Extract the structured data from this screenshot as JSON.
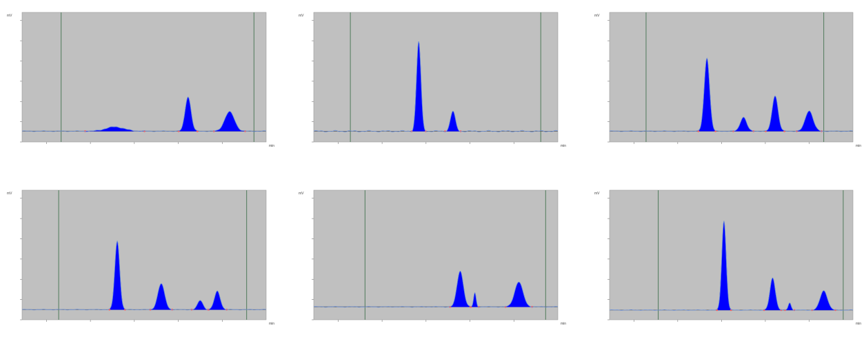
{
  "colors": {
    "plot_background": "#c0c0c0",
    "peak_fill": "#0000ff",
    "baseline": "#6a8fd8",
    "marker_line": "#4f7a5a",
    "integration_mark": "#ff5a5a"
  },
  "chart_data": [
    {
      "type": "line",
      "header": "",
      "ylabel": "mV",
      "xlabel": "min",
      "xlim": [
        0,
        100
      ],
      "ylim": [
        0,
        600
      ],
      "xticks": [
        "",
        "",
        "",
        "",
        ""
      ],
      "yticks": [],
      "baseline_level": 50,
      "markers_x": [
        16,
        95
      ],
      "peaks": [
        {
          "label": "",
          "x": 38,
          "height": 20,
          "width": 3.8
        },
        {
          "label": "",
          "x": 68,
          "height": 160,
          "width": 1.2
        },
        {
          "label": "",
          "x": 85,
          "height": 90,
          "width": 2.0
        }
      ]
    },
    {
      "type": "line",
      "header": "",
      "ylabel": "mV",
      "xlabel": "min",
      "xlim": [
        0,
        100
      ],
      "ylim": [
        0,
        325
      ],
      "xticks": [
        "",
        "",
        "",
        "",
        ""
      ],
      "yticks": [],
      "baseline_level": 27,
      "markers_x": [
        15,
        93
      ],
      "peaks": [
        {
          "label": "",
          "x": 43,
          "height": 225,
          "width": 0.9
        },
        {
          "label": "",
          "x": 57,
          "height": 50,
          "width": 1.0
        }
      ]
    },
    {
      "type": "line",
      "header": "",
      "ylabel": "mV",
      "xlabel": "min",
      "xlim": [
        0,
        100
      ],
      "ylim": [
        0,
        600
      ],
      "xticks": [
        "",
        "",
        "",
        "",
        ""
      ],
      "yticks": [],
      "baseline_level": 50,
      "markers_x": [
        15,
        88
      ],
      "peaks": [
        {
          "label": "",
          "x": 40,
          "height": 340,
          "width": 1.1
        },
        {
          "label": "",
          "x": 55,
          "height": 65,
          "width": 1.3
        },
        {
          "label": "",
          "x": 68,
          "height": 165,
          "width": 1.2
        },
        {
          "label": "",
          "x": 82,
          "height": 95,
          "width": 1.6
        }
      ]
    },
    {
      "type": "line",
      "header": "",
      "ylabel": "mV",
      "xlabel": "min",
      "xlim": [
        0,
        100
      ],
      "ylim": [
        0,
        700
      ],
      "xticks": [
        "",
        "",
        "",
        "",
        ""
      ],
      "yticks": [],
      "baseline_level": 55,
      "markers_x": [
        15,
        92
      ],
      "peaks": [
        {
          "label": "",
          "x": 39,
          "height": 370,
          "width": 1.0
        },
        {
          "label": "",
          "x": 57,
          "height": 140,
          "width": 1.4
        },
        {
          "label": "",
          "x": 73,
          "height": 50,
          "width": 1.1
        },
        {
          "label": "",
          "x": 80,
          "height": 100,
          "width": 1.2
        }
      ]
    },
    {
      "type": "line",
      "header": "",
      "ylabel": "mV",
      "xlabel": "min",
      "xlim": [
        0,
        100
      ],
      "ylim": [
        0,
        650
      ],
      "xticks": [
        "",
        "",
        "",
        "",
        ""
      ],
      "yticks": [],
      "baseline_level": 65,
      "markers_x": [
        21,
        95
      ],
      "peaks": [
        {
          "label": "",
          "x": 60,
          "height": 180,
          "width": 1.3
        },
        {
          "label": "",
          "x": 66,
          "height": 70,
          "width": 0.5
        },
        {
          "label": "",
          "x": 84,
          "height": 125,
          "width": 1.7
        }
      ]
    },
    {
      "type": "line",
      "header": "",
      "ylabel": "mV",
      "xlabel": "min",
      "xlim": [
        0,
        100
      ],
      "ylim": [
        0,
        800
      ],
      "xticks": [
        "",
        "",
        "",
        "",
        ""
      ],
      "yticks": [],
      "baseline_level": 60,
      "markers_x": [
        20,
        96
      ],
      "peaks": [
        {
          "label": "",
          "x": 47,
          "height": 550,
          "width": 0.9
        },
        {
          "label": "",
          "x": 67,
          "height": 200,
          "width": 1.1
        },
        {
          "label": "",
          "x": 74,
          "height": 45,
          "width": 0.6
        },
        {
          "label": "",
          "x": 88,
          "height": 120,
          "width": 1.5
        }
      ]
    }
  ]
}
